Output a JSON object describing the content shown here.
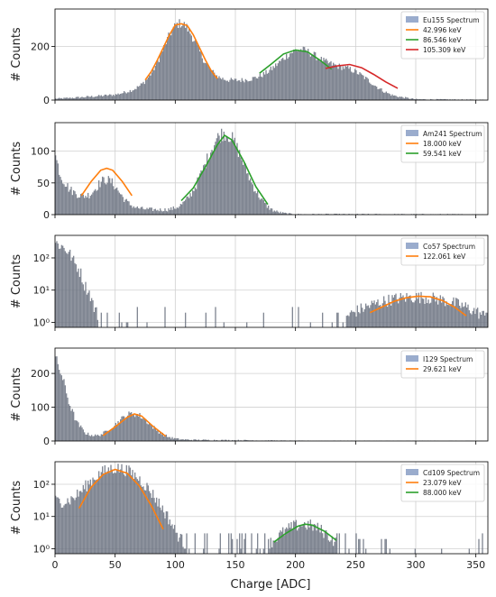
{
  "figure": {
    "xlabel": "Charge [ADC]",
    "ylabel": "# Counts",
    "xlim": [
      0,
      360
    ],
    "xticks": [
      "0",
      "50",
      "100",
      "150",
      "200",
      "250",
      "300",
      "350"
    ]
  },
  "chart_data": [
    {
      "type": "bar",
      "scale": "linear",
      "ylim": [
        0,
        340
      ],
      "yticks": [
        {
          "v": 0,
          "label": "0"
        },
        {
          "v": 200,
          "label": "200"
        }
      ],
      "grid": true,
      "legend_position": "top-right",
      "histogram": {
        "name": "Eu155 Spectrum",
        "color": "#6b7280",
        "baseline": [
          [
            0,
            5
          ],
          [
            20,
            10
          ],
          [
            50,
            20
          ],
          [
            75,
            45
          ],
          [
            100,
            60
          ],
          [
            130,
            70
          ],
          [
            150,
            72
          ],
          [
            175,
            75
          ],
          [
            200,
            80
          ],
          [
            230,
            70
          ],
          [
            260,
            40
          ],
          [
            280,
            15
          ],
          [
            300,
            3
          ],
          [
            360,
            1
          ]
        ],
        "peaks": [
          [
            104,
            14,
            225
          ],
          [
            204,
            17,
            108
          ],
          [
            246,
            15,
            55
          ]
        ]
      },
      "series": [
        {
          "name": "42.996 keV",
          "color": "#ff7f0e",
          "x": [
            75,
            80,
            85,
            90,
            95,
            100,
            105,
            110,
            115,
            120,
            125,
            130,
            135
          ],
          "y": [
            75,
            106,
            148,
            195,
            242,
            280,
            285,
            278,
            244,
            197,
            150,
            109,
            80
          ]
        },
        {
          "name": "86.546 keV",
          "color": "#2ca02c",
          "x": [
            170,
            180,
            190,
            200,
            210,
            220,
            230
          ],
          "y": [
            100,
            135,
            172,
            187,
            180,
            150,
            115
          ]
        },
        {
          "name": "105.309 keV",
          "color": "#d62728",
          "x": [
            225,
            235,
            245,
            255,
            265,
            275,
            285
          ],
          "y": [
            118,
            128,
            133,
            121,
            96,
            68,
            44
          ]
        }
      ]
    },
    {
      "type": "bar",
      "scale": "linear",
      "ylim": [
        0,
        145
      ],
      "yticks": [
        {
          "v": 0,
          "label": "0"
        },
        {
          "v": 50,
          "label": "50"
        },
        {
          "v": 100,
          "label": "100"
        }
      ],
      "grid": true,
      "legend_position": "top-right",
      "histogram": {
        "name": "Am241 Spectrum",
        "color": "#6b7280",
        "baseline": [
          [
            0,
            95
          ],
          [
            5,
            60
          ],
          [
            12,
            40
          ],
          [
            20,
            28
          ],
          [
            30,
            15
          ],
          [
            60,
            10
          ],
          [
            80,
            8
          ],
          [
            100,
            6
          ],
          [
            170,
            5
          ],
          [
            180,
            2
          ],
          [
            200,
            0.5
          ],
          [
            360,
            0
          ]
        ],
        "peaks": [
          [
            43,
            10,
            42
          ],
          [
            141,
            16,
            123
          ]
        ]
      },
      "series": [
        {
          "name": "18.000 keV",
          "color": "#ff7f0e",
          "x": [
            22,
            30,
            38,
            43,
            48,
            56,
            64
          ],
          "y": [
            30,
            52,
            70,
            73,
            70,
            52,
            30
          ]
        },
        {
          "name": "59.541 keV",
          "color": "#2ca02c",
          "x": [
            105,
            115,
            125,
            135,
            141,
            147,
            157,
            167,
            177
          ],
          "y": [
            22,
            42,
            75,
            110,
            125,
            118,
            84,
            44,
            16
          ]
        }
      ]
    },
    {
      "type": "bar",
      "scale": "log",
      "ylim": [
        0.7,
        500
      ],
      "yticks": [
        {
          "v": 1,
          "label": "10⁰"
        },
        {
          "v": 10,
          "label": "10¹"
        },
        {
          "v": 100,
          "label": "10²"
        }
      ],
      "grid": true,
      "legend_position": "top-right",
      "histogram": {
        "name": "Co57 Spectrum",
        "color": "#6b7280",
        "baseline": [
          [
            0,
            300
          ],
          [
            8,
            200
          ],
          [
            16,
            70
          ],
          [
            24,
            15
          ],
          [
            32,
            3
          ],
          [
            40,
            0
          ],
          [
            360,
            0
          ]
        ],
        "peaks": [
          [
            300,
            35,
            6
          ]
        ],
        "sparse": 0.12
      },
      "series": [
        {
          "name": "122.061 keV",
          "color": "#ff7f0e",
          "x": [
            262,
            272,
            282,
            292,
            302,
            312,
            322,
            332,
            342
          ],
          "y": [
            2,
            3,
            4.5,
            5.8,
            6.5,
            6.2,
            4.8,
            3,
            1.6
          ]
        }
      ]
    },
    {
      "type": "bar",
      "scale": "linear",
      "ylim": [
        0,
        275
      ],
      "yticks": [
        {
          "v": 0,
          "label": "0"
        },
        {
          "v": 100,
          "label": "100"
        },
        {
          "v": 200,
          "label": "200"
        }
      ],
      "grid": true,
      "legend_position": "top-right",
      "histogram": {
        "name": "I129 Spectrum",
        "color": "#6b7280",
        "baseline": [
          [
            0,
            250
          ],
          [
            6,
            190
          ],
          [
            12,
            110
          ],
          [
            18,
            55
          ],
          [
            26,
            20
          ],
          [
            35,
            8
          ],
          [
            50,
            5
          ],
          [
            90,
            4
          ],
          [
            120,
            3
          ],
          [
            160,
            2
          ],
          [
            200,
            0.5
          ],
          [
            360,
            0
          ]
        ],
        "peaks": [
          [
            65,
            14,
            76
          ]
        ]
      },
      "series": [
        {
          "name": "29.621 keV",
          "color": "#ff7f0e",
          "x": [
            40,
            50,
            60,
            66,
            72,
            82,
            92
          ],
          "y": [
            16,
            42,
            70,
            80,
            74,
            42,
            14
          ]
        }
      ]
    },
    {
      "type": "bar",
      "scale": "log",
      "ylim": [
        0.7,
        500
      ],
      "yticks": [
        {
          "v": 1,
          "label": "10⁰"
        },
        {
          "v": 10,
          "label": "10¹"
        },
        {
          "v": 100,
          "label": "10²"
        }
      ],
      "grid": true,
      "legend_position": "top-right",
      "histogram": {
        "name": "Cd109 Spectrum",
        "color": "#6b7280",
        "baseline": [
          [
            0,
            30
          ],
          [
            15,
            20
          ],
          [
            25,
            15
          ],
          [
            80,
            10
          ],
          [
            90,
            6
          ],
          [
            100,
            2
          ],
          [
            110,
            1
          ],
          [
            140,
            0.7
          ],
          [
            360,
            0.3
          ]
        ],
        "peaks": [
          [
            51,
            15,
            300
          ],
          [
            207,
            15,
            5
          ]
        ],
        "sparse": 0.18
      },
      "series": [
        {
          "name": "23.079 keV",
          "color": "#ff7f0e",
          "x": [
            20,
            30,
            40,
            50,
            60,
            70,
            80,
            90
          ],
          "y": [
            18,
            80,
            200,
            290,
            220,
            90,
            22,
            4
          ]
        },
        {
          "name": "88.000 keV",
          "color": "#2ca02c",
          "x": [
            182,
            192,
            202,
            208,
            214,
            224,
            234
          ],
          "y": [
            1.6,
            3,
            5,
            5.8,
            5.4,
            3.5,
            1.8
          ]
        }
      ]
    }
  ]
}
